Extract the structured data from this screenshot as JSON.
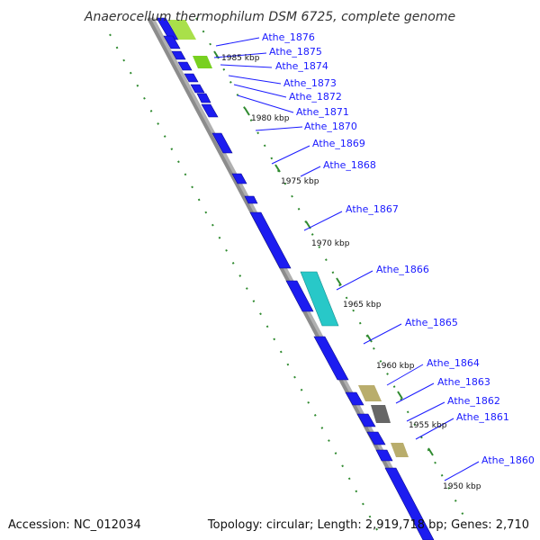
{
  "title": "Anaerocellum thermophilum DSM 6725, complete genome",
  "accession": "Accession: NC_012034",
  "summary": "Topology: circular; Length: 2,919,718 bp; Genes: 2,710",
  "colors": {
    "cds_blue": "#1c1cf0",
    "rna_cyan": "#28c8c8",
    "tan": "#b9ad6c",
    "gray": "#666666",
    "green": "#78d020",
    "axis": "#8c8c8c",
    "tick_green": "#2f8a2f",
    "label_blue": "#1a1aff"
  },
  "gene_labels": [
    "Athe_1876",
    "Athe_1875",
    "Athe_1874",
    "Athe_1873",
    "Athe_1872",
    "Athe_1871",
    "Athe_1870",
    "Athe_1869",
    "Athe_1868",
    "Athe_1867",
    "Athe_1866",
    "Athe_1865",
    "Athe_1864",
    "Athe_1863",
    "Athe_1862",
    "Athe_1861",
    "Athe_1860"
  ],
  "kbp_labels": [
    "1985 kbp",
    "1980 kbp",
    "1975 kbp",
    "1970 kbp",
    "1965 kbp",
    "1960 kbp",
    "1955 kbp",
    "1950 kbp"
  ]
}
